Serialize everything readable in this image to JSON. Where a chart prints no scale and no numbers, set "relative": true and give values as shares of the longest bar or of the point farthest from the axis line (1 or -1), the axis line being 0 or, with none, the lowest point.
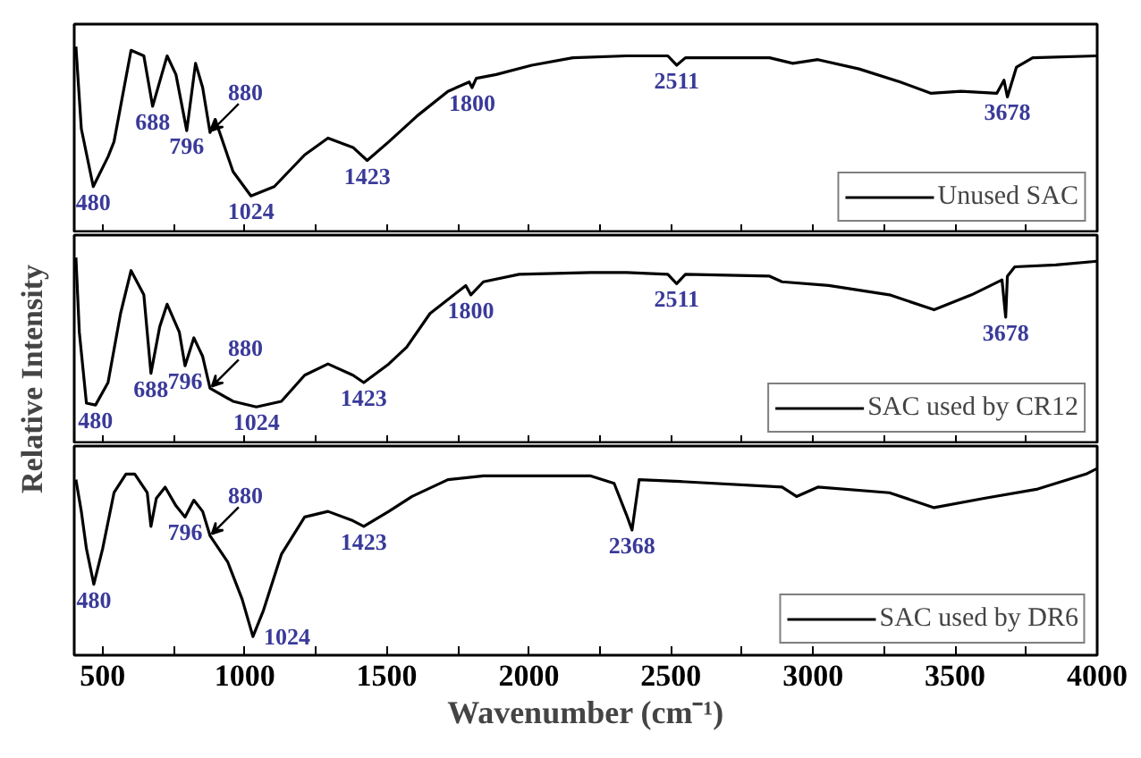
{
  "chart_data": [
    {
      "type": "line",
      "relative": true,
      "xlim": [
        400,
        4000
      ],
      "tick_labels": false,
      "legend": "bottom right",
      "grid": false,
      "xticks": [
        500,
        {
          "value": 750,
          "label": null
        },
        1000,
        {
          "value": 1250,
          "label": null
        },
        1500,
        {
          "value": 1750,
          "label": null
        },
        2000,
        {
          "value": 2250,
          "label": null
        },
        2500,
        {
          "value": 2750,
          "label": null
        },
        3000,
        {
          "value": 3250,
          "label": null
        },
        3500,
        {
          "value": 3750,
          "label": null
        },
        4000
      ],
      "series": [
        {
          "name": "Unused SAC",
          "color": "#000000",
          "x": [
            406,
            425,
            467,
            519,
            540,
            600,
            645,
            676,
            708,
            727,
            758,
            796,
            827,
            852,
            878,
            896,
            959,
            1022,
            1104,
            1211,
            1293,
            1381,
            1431,
            1507,
            1608,
            1715,
            1790,
            1800,
            1815,
            1885,
            2010,
            2155,
            2344,
            2489,
            2520,
            2551,
            2847,
            2929,
            3017,
            3162,
            3307,
            3414,
            3521,
            3647,
            3672,
            3684,
            3716,
            3773,
            4000
          ],
          "values": [
            1.0,
            0.56,
            0.25,
            0.41,
            0.49,
            0.98,
            0.95,
            0.68,
            0.85,
            0.95,
            0.85,
            0.55,
            0.91,
            0.78,
            0.54,
            0.61,
            0.33,
            0.2,
            0.25,
            0.42,
            0.51,
            0.46,
            0.39,
            0.49,
            0.63,
            0.76,
            0.81,
            0.78,
            0.83,
            0.85,
            0.9,
            0.94,
            0.95,
            0.95,
            0.9,
            0.94,
            0.94,
            0.91,
            0.93,
            0.88,
            0.81,
            0.75,
            0.76,
            0.75,
            0.82,
            0.73,
            0.89,
            0.94,
            0.95
          ]
        }
      ],
      "annotations": [
        {
          "text": "480",
          "x": 467,
          "y": 0.25
        },
        {
          "text": "688",
          "x": 676,
          "y": 0.68
        },
        {
          "text": "796",
          "x": 796,
          "y": 0.55
        },
        {
          "text": "880",
          "x": 878,
          "y": 0.54
        },
        {
          "text": "1024",
          "x": 1022,
          "y": 0.2
        },
        {
          "text": "1423",
          "x": 1431,
          "y": 0.39
        },
        {
          "text": "1800",
          "x": 1800,
          "y": 0.78
        },
        {
          "text": "2511",
          "x": 2520,
          "y": 0.9
        },
        {
          "text": "3678",
          "x": 3684,
          "y": 0.73
        }
      ]
    },
    {
      "type": "line",
      "relative": true,
      "xlim": [
        400,
        4000
      ],
      "tick_labels": false,
      "legend": "bottom right",
      "grid": false,
      "ylabel": "Relative Intensity",
      "xticks": [
        500,
        {
          "value": 750,
          "label": null
        },
        1000,
        {
          "value": 1250,
          "label": null
        },
        1500,
        {
          "value": 1750,
          "label": null
        },
        2000,
        {
          "value": 2250,
          "label": null
        },
        2500,
        {
          "value": 2750,
          "label": null
        },
        3000,
        {
          "value": 3250,
          "label": null
        },
        3500,
        {
          "value": 3750,
          "label": null
        },
        4000
      ],
      "series": [
        {
          "name": "SAC used by CR12",
          "color": "#000000",
          "x": [
            406,
            418,
            443,
            475,
            519,
            563,
            600,
            645,
            670,
            701,
            727,
            770,
            790,
            821,
            852,
            878,
            959,
            1041,
            1129,
            1211,
            1293,
            1381,
            1419,
            1507,
            1570,
            1652,
            1778,
            1796,
            1840,
            1966,
            2218,
            2344,
            2489,
            2520,
            2551,
            2847,
            2891,
            3055,
            3269,
            3426,
            3558,
            3665,
            3678,
            3684,
            3710,
            3854,
            4000
          ],
          "values": [
            1.0,
            0.6,
            0.22,
            0.21,
            0.33,
            0.7,
            0.93,
            0.8,
            0.38,
            0.63,
            0.75,
            0.6,
            0.42,
            0.57,
            0.47,
            0.3,
            0.23,
            0.2,
            0.23,
            0.37,
            0.43,
            0.37,
            0.33,
            0.43,
            0.52,
            0.7,
            0.85,
            0.8,
            0.87,
            0.91,
            0.92,
            0.92,
            0.91,
            0.86,
            0.91,
            0.9,
            0.87,
            0.85,
            0.8,
            0.72,
            0.8,
            0.88,
            0.68,
            0.9,
            0.95,
            0.96,
            0.98
          ]
        }
      ],
      "annotations": [
        {
          "text": "480",
          "x": 475,
          "y": 0.21
        },
        {
          "text": "688",
          "x": 670,
          "y": 0.38
        },
        {
          "text": "796",
          "x": 790,
          "y": 0.42
        },
        {
          "text": "880",
          "x": 878,
          "y": 0.3
        },
        {
          "text": "1024",
          "x": 1041,
          "y": 0.2
        },
        {
          "text": "1423",
          "x": 1419,
          "y": 0.33
        },
        {
          "text": "1800",
          "x": 1796,
          "y": 0.8
        },
        {
          "text": "2511",
          "x": 2520,
          "y": 0.86
        },
        {
          "text": "3678",
          "x": 3678,
          "y": 0.68
        }
      ]
    },
    {
      "type": "line",
      "relative": true,
      "xlim": [
        400,
        4000
      ],
      "tick_labels": "x",
      "legend": "bottom right",
      "grid": false,
      "xlabel": "Wavenumber (cm⁻¹)",
      "xticks": [
        500,
        {
          "value": 750,
          "label": null
        },
        1000,
        {
          "value": 1250,
          "label": null
        },
        1500,
        {
          "value": 1750,
          "label": null
        },
        2000,
        {
          "value": 2250,
          "label": null
        },
        2500,
        {
          "value": 2750,
          "label": null
        },
        3000,
        {
          "value": 3250,
          "label": null
        },
        3500,
        {
          "value": 3750,
          "label": null
        },
        4000
      ],
      "series": [
        {
          "name": "SAC used by DR6",
          "color": "#000000",
          "x": [
            406,
            425,
            443,
            469,
            500,
            540,
            582,
            613,
            657,
            670,
            689,
            720,
            758,
            790,
            821,
            852,
            878,
            940,
            991,
            1029,
            1066,
            1129,
            1211,
            1293,
            1381,
            1419,
            1507,
            1589,
            1715,
            1840,
            2218,
            2300,
            2344,
            2363,
            2388,
            2533,
            2891,
            2942,
            3017,
            3269,
            3426,
            3602,
            3791,
            3961,
            4000
          ],
          "values": [
            0.94,
            0.77,
            0.57,
            0.38,
            0.57,
            0.87,
            0.97,
            0.97,
            0.87,
            0.69,
            0.84,
            0.9,
            0.8,
            0.74,
            0.83,
            0.77,
            0.64,
            0.5,
            0.3,
            0.1,
            0.24,
            0.54,
            0.74,
            0.77,
            0.72,
            0.69,
            0.77,
            0.85,
            0.94,
            0.96,
            0.96,
            0.92,
            0.75,
            0.67,
            0.94,
            0.93,
            0.9,
            0.85,
            0.9,
            0.87,
            0.79,
            0.84,
            0.89,
            0.97,
            1.0
          ]
        }
      ],
      "annotations": [
        {
          "text": "480",
          "x": 469,
          "y": 0.38
        },
        {
          "text": "796",
          "x": 790,
          "y": 0.74
        },
        {
          "text": "880",
          "x": 878,
          "y": 0.64
        },
        {
          "text": "1024",
          "x": 1029,
          "y": 0.1
        },
        {
          "text": "1423",
          "x": 1419,
          "y": 0.69
        },
        {
          "text": "2368",
          "x": 2363,
          "y": 0.67
        }
      ]
    }
  ]
}
